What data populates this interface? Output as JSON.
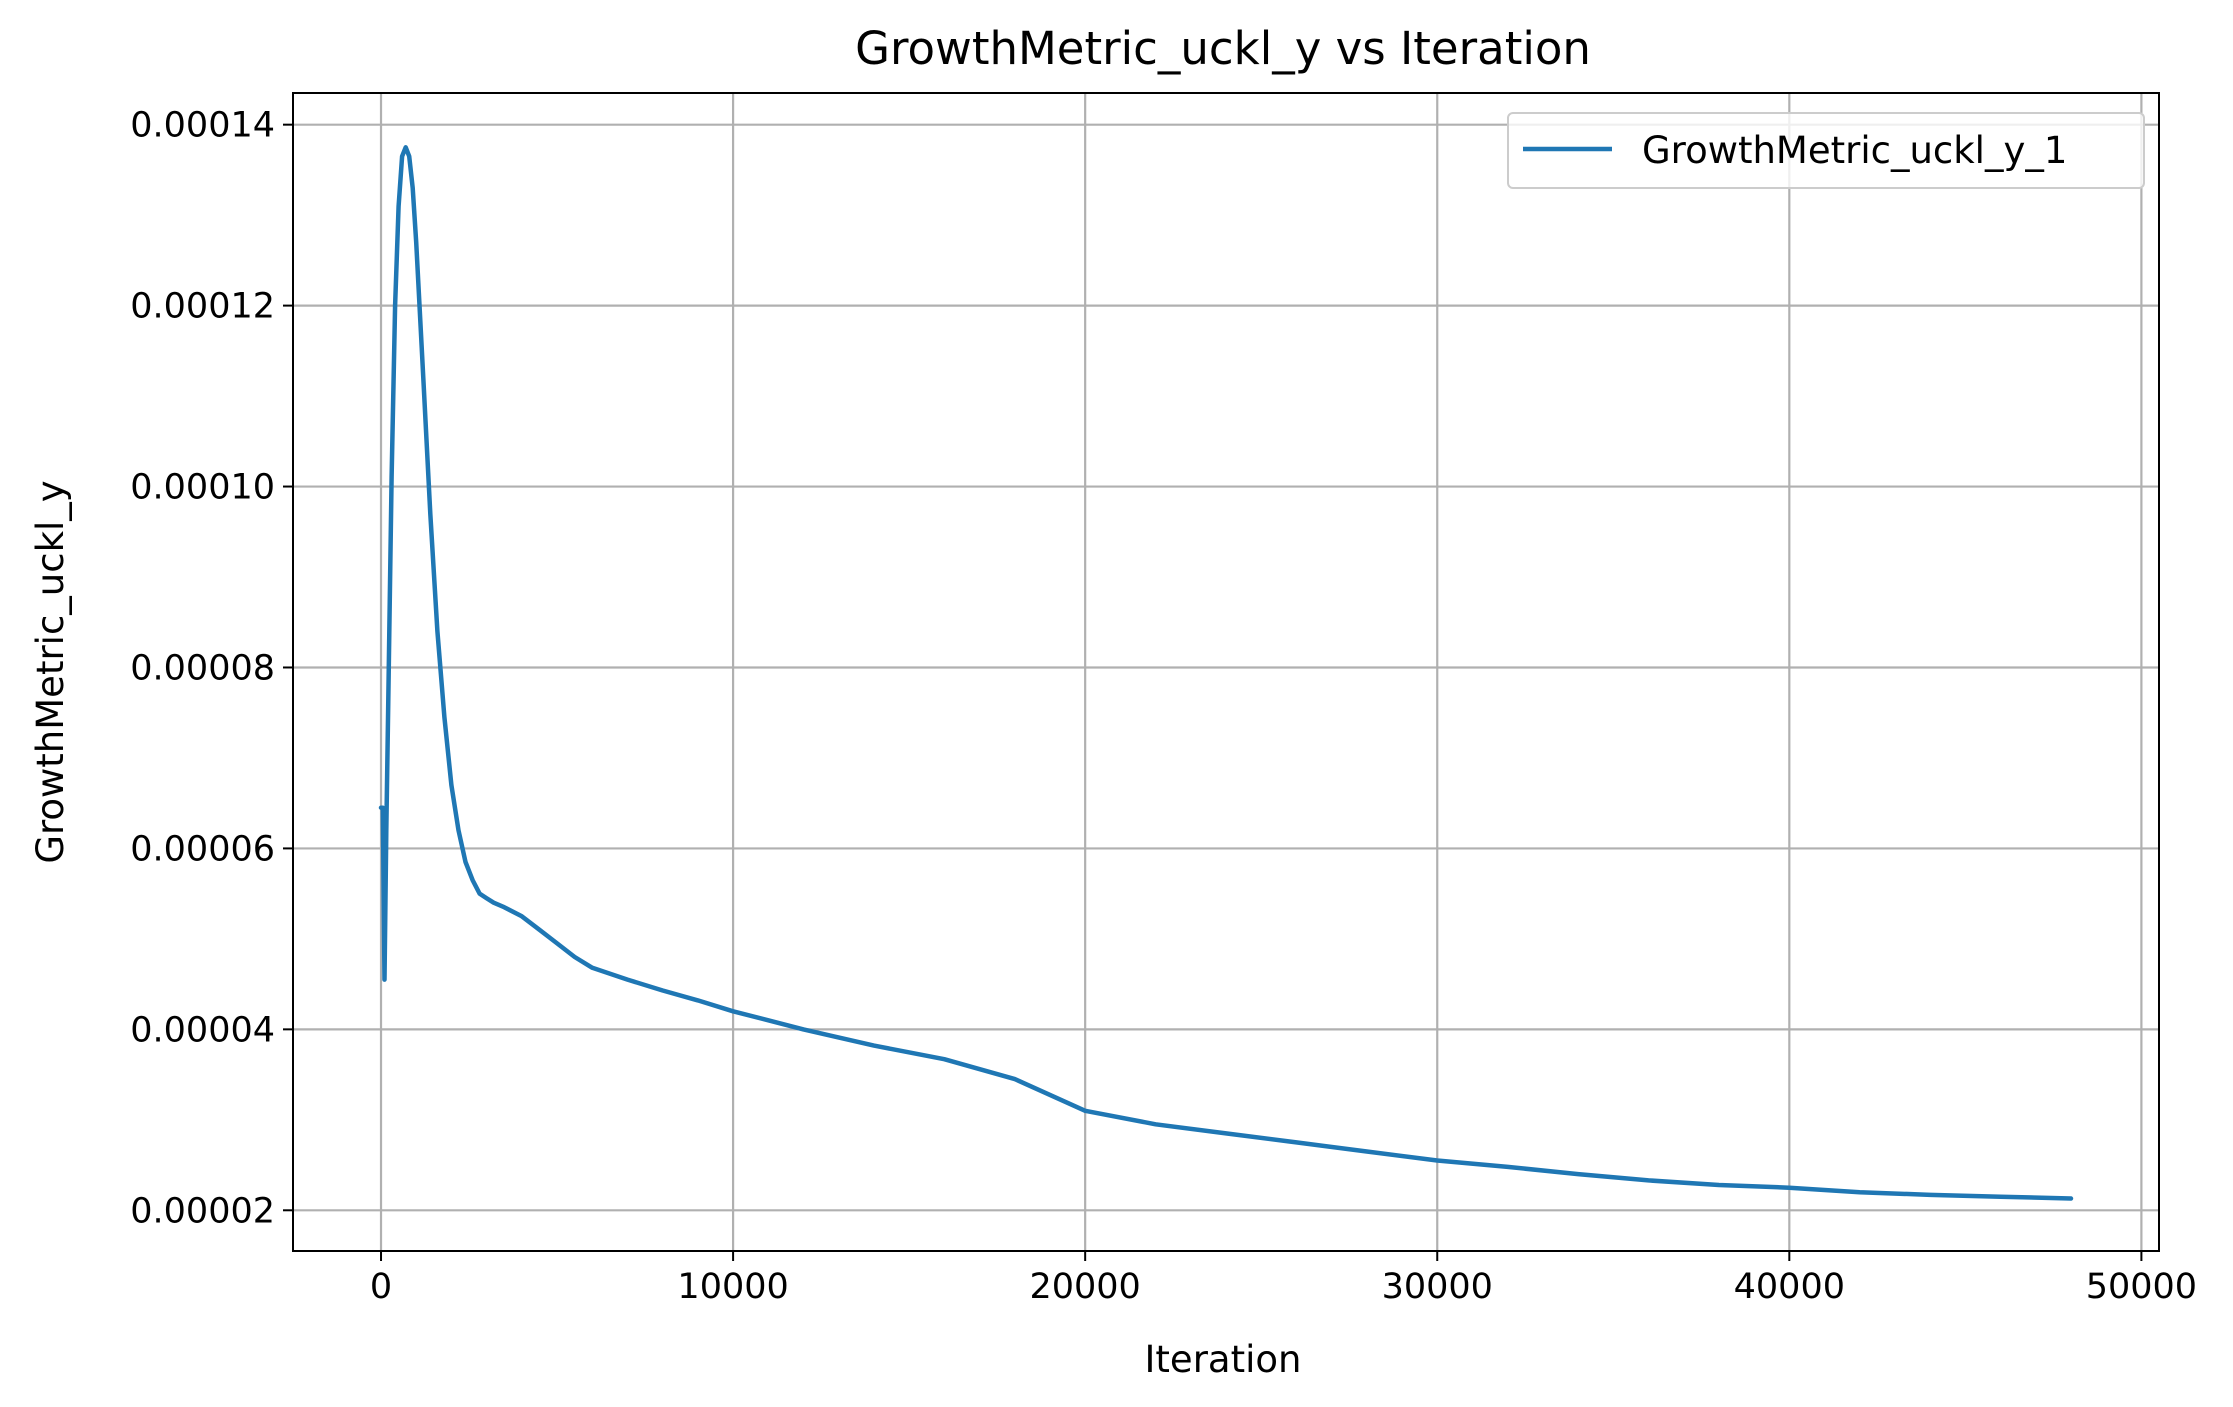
{
  "chart_data": {
    "type": "line",
    "title": "GrowthMetric_uckl_y vs Iteration",
    "xlabel": "Iteration",
    "ylabel": "GrowthMetric_uckl_y",
    "xlim": [
      -2500,
      50500
    ],
    "ylim": [
      1.55e-05,
      0.0001435
    ],
    "xticks": [
      0,
      10000,
      20000,
      30000,
      40000,
      50000
    ],
    "xtick_labels": [
      "0",
      "10000",
      "20000",
      "30000",
      "40000",
      "50000"
    ],
    "yticks": [
      2e-05,
      4e-05,
      6e-05,
      8e-05,
      0.0001,
      0.00012,
      0.00014
    ],
    "ytick_labels": [
      "0.00002",
      "0.00004",
      "0.00006",
      "0.00008",
      "0.00010",
      "0.00012",
      "0.00014"
    ],
    "grid": true,
    "legend_position": "top-right",
    "series": [
      {
        "name": "GrowthMetric_uckl_y_1",
        "color": "#1f77b4",
        "x": [
          0,
          50,
          100,
          150,
          200,
          300,
          400,
          500,
          600,
          700,
          800,
          900,
          1000,
          1200,
          1400,
          1600,
          1800,
          2000,
          2200,
          2400,
          2600,
          2800,
          3000,
          3200,
          3500,
          4000,
          4500,
          5000,
          5500,
          6000,
          7000,
          8000,
          9000,
          10000,
          11000,
          12000,
          14000,
          16000,
          18000,
          20000,
          22000,
          24000,
          26000,
          28000,
          30000,
          32000,
          34000,
          36000,
          38000,
          40000,
          42000,
          44000,
          46000,
          48000
        ],
        "y": [
          6.45e-05,
          6.45e-05,
          4.55e-05,
          6.2e-05,
          7.5e-05,
          0.000101,
          0.00012,
          0.000131,
          0.0001365,
          0.0001375,
          0.0001365,
          0.000133,
          0.000127,
          0.000112,
          9.7e-05,
          8.4e-05,
          7.45e-05,
          6.7e-05,
          6.2e-05,
          5.85e-05,
          5.65e-05,
          5.5e-05,
          5.45e-05,
          5.4e-05,
          5.35e-05,
          5.25e-05,
          5.1e-05,
          4.95e-05,
          4.8e-05,
          4.68e-05,
          4.55e-05,
          4.43e-05,
          4.32e-05,
          4.2e-05,
          4.1e-05,
          4e-05,
          3.82e-05,
          3.67e-05,
          3.45e-05,
          3.1e-05,
          2.95e-05,
          2.85e-05,
          2.75e-05,
          2.65e-05,
          2.55e-05,
          2.48e-05,
          2.4e-05,
          2.33e-05,
          2.28e-05,
          2.25e-05,
          2.2e-05,
          2.17e-05,
          2.15e-05,
          2.13e-05
        ]
      }
    ]
  }
}
